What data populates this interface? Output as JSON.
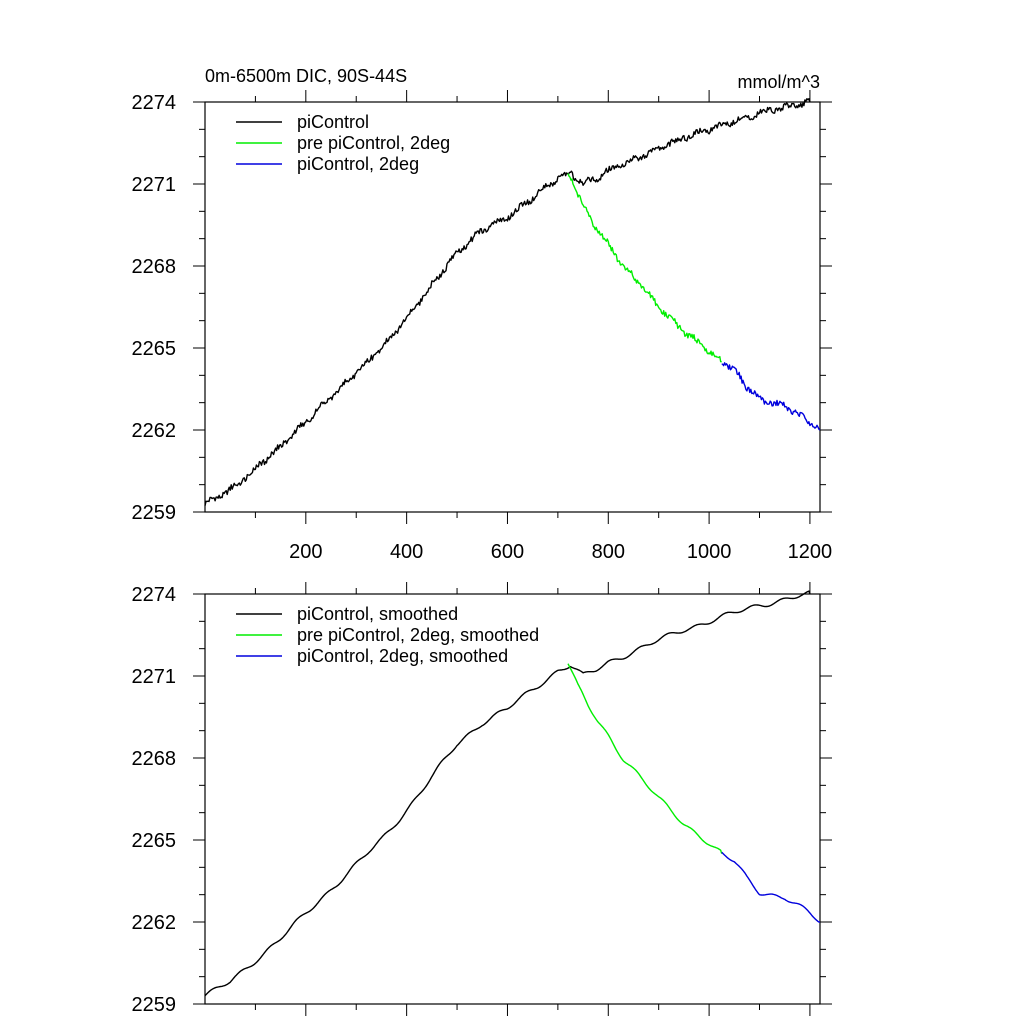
{
  "chart_data": [
    {
      "type": "line",
      "title": "0m-6500m DIC, 90S-44S",
      "units": "mmol/m^3",
      "xlabel": "",
      "ylabel": "",
      "xlim": [
        0,
        1220
      ],
      "ylim": [
        2259,
        2274
      ],
      "xticks": [
        200,
        400,
        600,
        800,
        1000,
        1200
      ],
      "yticks": [
        2259,
        2262,
        2265,
        2268,
        2271,
        2274
      ],
      "legend_position": "top-left",
      "series": [
        {
          "name": "piControl",
          "color": "#000000",
          "x": [
            0,
            50,
            100,
            150,
            200,
            250,
            300,
            350,
            400,
            450,
            500,
            550,
            600,
            650,
            700,
            725,
            750,
            775,
            800,
            850,
            900,
            950,
            1000,
            1050,
            1100,
            1150,
            1200
          ],
          "y": [
            2259.3,
            2259.8,
            2260.6,
            2261.4,
            2262.3,
            2263.2,
            2264.1,
            2265.0,
            2266.1,
            2267.3,
            2268.5,
            2269.3,
            2269.8,
            2270.5,
            2271.2,
            2271.4,
            2271.0,
            2271.2,
            2271.5,
            2271.9,
            2272.3,
            2272.7,
            2273.0,
            2273.3,
            2273.6,
            2273.8,
            2274.0
          ]
        },
        {
          "name": "pre piControl, 2deg",
          "color": "#00ee00",
          "x": [
            720,
            740,
            760,
            780,
            800,
            830,
            860,
            900,
            950,
            1000,
            1025
          ],
          "y": [
            2271.5,
            2270.6,
            2269.9,
            2269.3,
            2268.8,
            2268.0,
            2267.4,
            2266.5,
            2265.6,
            2264.9,
            2264.5
          ]
        },
        {
          "name": "piControl, 2deg",
          "color": "#0000dd",
          "x": [
            1025,
            1050,
            1075,
            1100,
            1125,
            1150,
            1175,
            1200,
            1220
          ],
          "y": [
            2264.5,
            2264.2,
            2263.6,
            2263.1,
            2263.0,
            2262.9,
            2262.6,
            2262.3,
            2262.0
          ]
        }
      ]
    },
    {
      "type": "line",
      "title": "",
      "xlabel": "",
      "ylabel": "",
      "xlim": [
        0,
        1220
      ],
      "ylim": [
        2259,
        2274
      ],
      "xticks": [
        200,
        400,
        600,
        800,
        1000,
        1200
      ],
      "yticks": [
        2259,
        2262,
        2265,
        2268,
        2271,
        2274
      ],
      "legend_position": "top-left",
      "series": [
        {
          "name": "piControl, smoothed",
          "color": "#000000",
          "x": [
            0,
            50,
            100,
            150,
            200,
            250,
            300,
            350,
            400,
            450,
            500,
            550,
            600,
            650,
            700,
            725,
            750,
            775,
            800,
            850,
            900,
            950,
            1000,
            1050,
            1100,
            1150,
            1200
          ],
          "y": [
            2259.3,
            2259.8,
            2260.6,
            2261.4,
            2262.3,
            2263.2,
            2264.1,
            2265.0,
            2266.1,
            2267.3,
            2268.5,
            2269.3,
            2269.8,
            2270.5,
            2271.2,
            2271.4,
            2271.0,
            2271.2,
            2271.5,
            2271.9,
            2272.3,
            2272.7,
            2273.0,
            2273.3,
            2273.6,
            2273.8,
            2274.0
          ]
        },
        {
          "name": "pre piControl, 2deg, smoothed",
          "color": "#00ee00",
          "x": [
            720,
            740,
            760,
            780,
            800,
            830,
            860,
            900,
            950,
            1000,
            1025
          ],
          "y": [
            2271.5,
            2270.6,
            2269.9,
            2269.3,
            2268.8,
            2268.0,
            2267.4,
            2266.5,
            2265.6,
            2264.9,
            2264.5
          ]
        },
        {
          "name": "piControl, 2deg, smoothed",
          "color": "#0000dd",
          "x": [
            1025,
            1050,
            1075,
            1100,
            1125,
            1150,
            1175,
            1200,
            1220
          ],
          "y": [
            2264.5,
            2264.2,
            2263.6,
            2263.1,
            2263.0,
            2262.9,
            2262.6,
            2262.3,
            2262.0
          ]
        }
      ]
    }
  ]
}
